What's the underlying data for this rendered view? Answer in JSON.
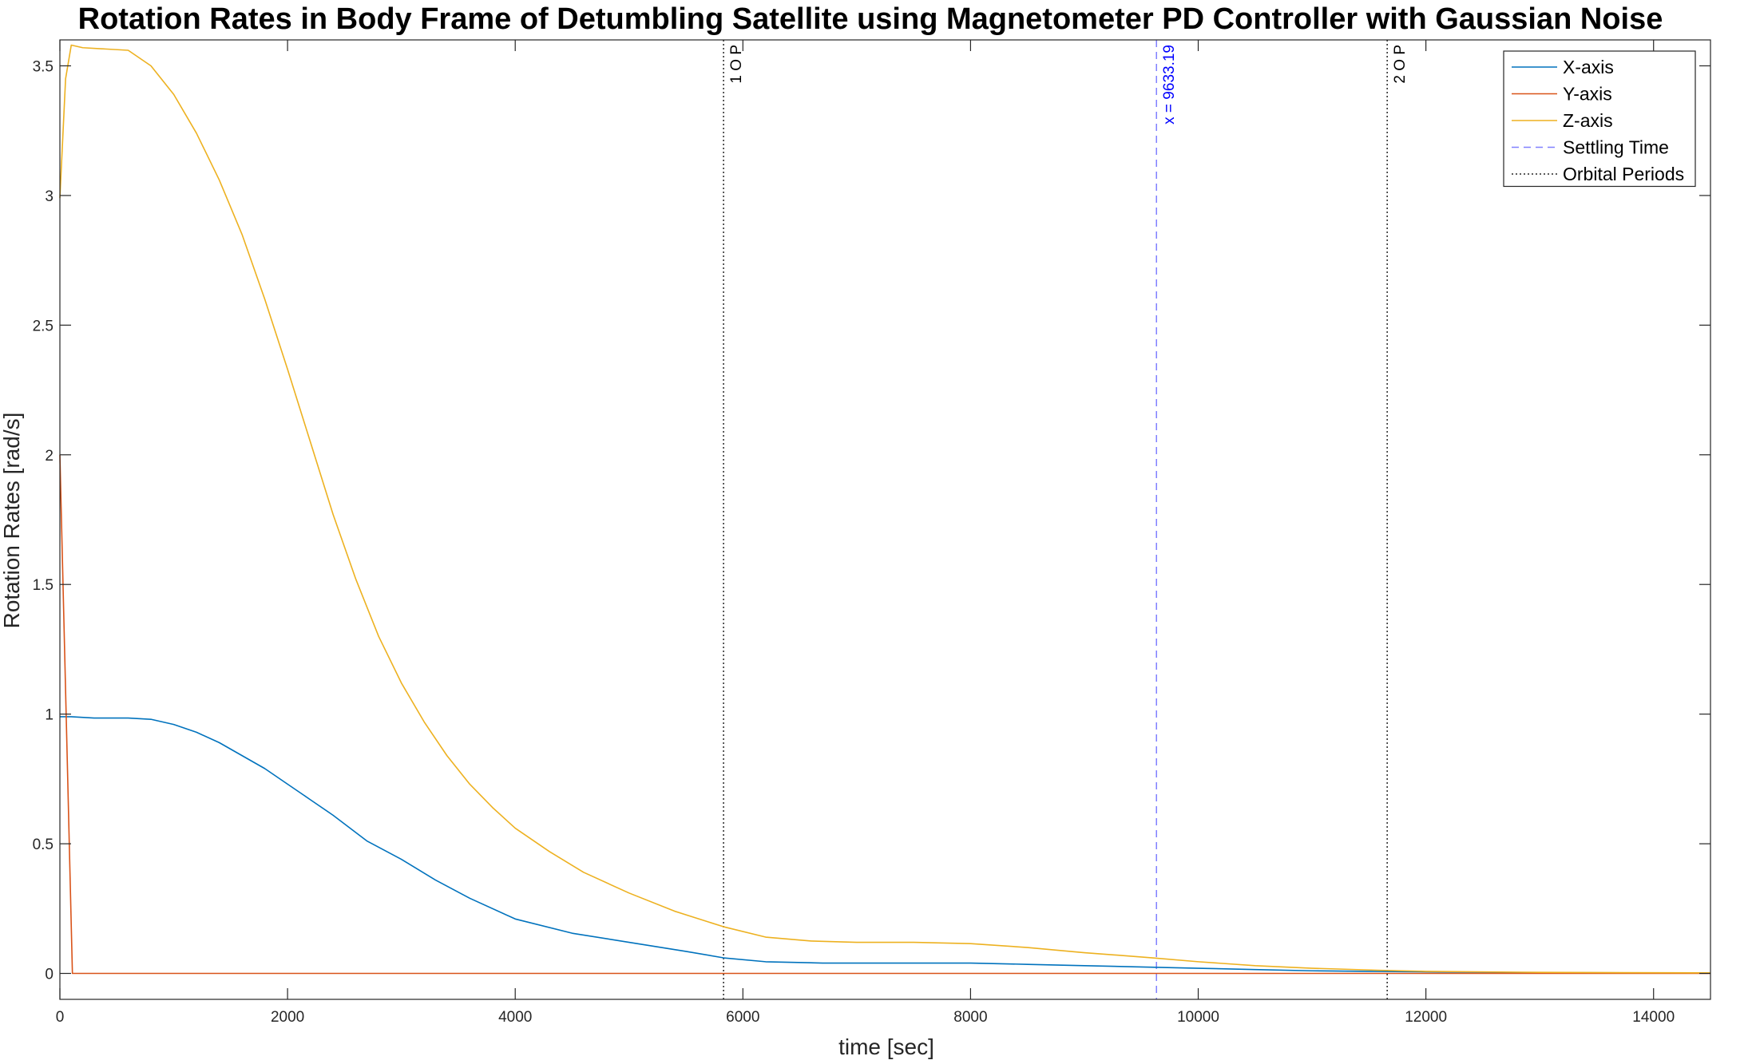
{
  "chart_data": {
    "type": "line",
    "title": "Rotation Rates in Body Frame of Detumbling Satellite using Magnetometer PD Controller with Gaussian Noise",
    "xlabel": "time [sec]",
    "ylabel": "Rotation Rates  [rad/s]",
    "xlim": [
      0,
      14500
    ],
    "ylim": [
      -0.1,
      3.6
    ],
    "xticks": [
      0,
      2000,
      4000,
      6000,
      8000,
      10000,
      12000,
      14000
    ],
    "yticks": [
      0,
      0.5,
      1,
      1.5,
      2,
      2.5,
      3,
      3.5
    ],
    "xtick_labels": [
      "0",
      "2000",
      "4000",
      "6000",
      "8000",
      "10000",
      "12000",
      "14000"
    ],
    "ytick_labels": [
      "0",
      "0.5",
      "1",
      "1.5",
      "2",
      "2.5",
      "3",
      "3.5"
    ],
    "grid": false,
    "legend_position": "top-right",
    "series": [
      {
        "name": "X-axis",
        "color": "#0072BD",
        "x": [
          0,
          100,
          300,
          600,
          800,
          1000,
          1200,
          1400,
          1600,
          1800,
          2000,
          2200,
          2400,
          2700,
          3000,
          3300,
          3600,
          4000,
          4500,
          5000,
          5500,
          5830,
          6200,
          6700,
          7000,
          7500,
          8000,
          8500,
          9000,
          9500,
          10000,
          10500,
          11000,
          11500,
          12000,
          13000,
          14500
        ],
        "y": [
          0.99,
          0.99,
          0.985,
          0.985,
          0.98,
          0.96,
          0.93,
          0.89,
          0.84,
          0.79,
          0.73,
          0.67,
          0.61,
          0.51,
          0.44,
          0.36,
          0.29,
          0.21,
          0.155,
          0.12,
          0.085,
          0.06,
          0.045,
          0.04,
          0.04,
          0.04,
          0.04,
          0.035,
          0.03,
          0.025,
          0.02,
          0.015,
          0.01,
          0.008,
          0.006,
          0.003,
          0.001
        ]
      },
      {
        "name": "Y-axis",
        "color": "#D95319",
        "x": [
          0,
          110,
          500,
          5000,
          10000,
          14500
        ],
        "y": [
          2.0,
          0.0,
          0.0,
          0.0,
          0.0,
          0.0
        ]
      },
      {
        "name": "Z-axis",
        "color": "#EDB120",
        "x": [
          0,
          50,
          100,
          200,
          400,
          600,
          800,
          1000,
          1200,
          1400,
          1600,
          1800,
          2000,
          2200,
          2400,
          2600,
          2800,
          3000,
          3200,
          3400,
          3600,
          3800,
          4000,
          4300,
          4600,
          5000,
          5400,
          5830,
          6200,
          6600,
          7000,
          7500,
          8000,
          8500,
          9000,
          9600,
          10000,
          10500,
          11000,
          11600,
          12000,
          13000,
          14500
        ],
        "y": [
          2.99,
          3.45,
          3.58,
          3.57,
          3.565,
          3.56,
          3.5,
          3.39,
          3.24,
          3.06,
          2.85,
          2.6,
          2.33,
          2.05,
          1.77,
          1.52,
          1.3,
          1.12,
          0.97,
          0.84,
          0.73,
          0.64,
          0.56,
          0.47,
          0.39,
          0.31,
          0.24,
          0.18,
          0.14,
          0.125,
          0.12,
          0.12,
          0.115,
          0.1,
          0.08,
          0.06,
          0.045,
          0.03,
          0.02,
          0.012,
          0.008,
          0.004,
          0.002
        ]
      }
    ],
    "reference_lines": [
      {
        "name": "Settling Time",
        "x": 9633.19,
        "style": "dashed",
        "color": "#8080FF",
        "label": "x = 9633.19",
        "label_color": "#0000FF"
      },
      {
        "name": "Orbital Periods",
        "x": 5830,
        "style": "dotted",
        "color": "#262626",
        "label": "1 O P",
        "label_color": "#000000"
      },
      {
        "name": "Orbital Periods",
        "x": 11660,
        "style": "dotted",
        "color": "#262626",
        "label": "2 O P",
        "label_color": "#000000"
      }
    ],
    "legend": [
      {
        "label": "X-axis",
        "color": "#0072BD",
        "style": "solid"
      },
      {
        "label": "Y-axis",
        "color": "#D95319",
        "style": "solid"
      },
      {
        "label": "Z-axis",
        "color": "#EDB120",
        "style": "solid"
      },
      {
        "label": "Settling Time",
        "color": "#8080FF",
        "style": "dashed"
      },
      {
        "label": "Orbital Periods",
        "color": "#262626",
        "style": "dotted"
      }
    ]
  }
}
